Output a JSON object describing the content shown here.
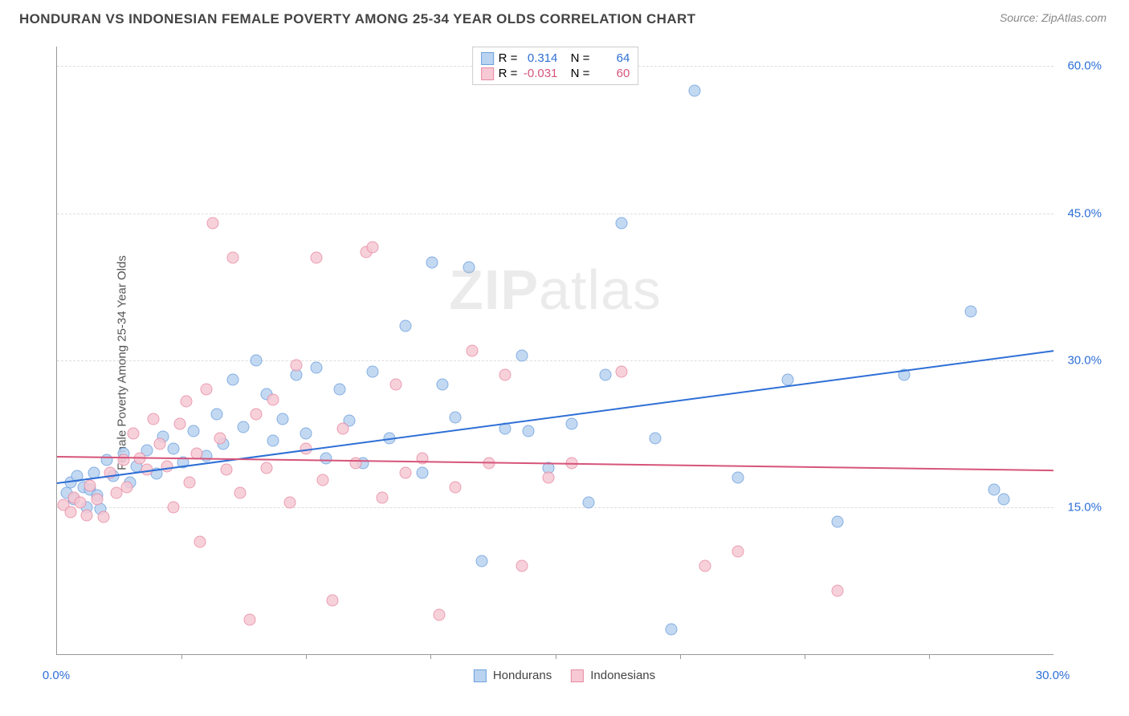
{
  "header": {
    "title": "HONDURAN VS INDONESIAN FEMALE POVERTY AMONG 25-34 YEAR OLDS CORRELATION CHART",
    "source": "Source: ZipAtlas.com"
  },
  "watermark": {
    "prefix": "ZIP",
    "suffix": "atlas"
  },
  "chart": {
    "type": "scatter",
    "ylabel": "Female Poverty Among 25-34 Year Olds",
    "xlim": [
      0,
      30
    ],
    "ylim": [
      0,
      62
    ],
    "x_axis_labels": [
      {
        "x": 0,
        "text": "0.0%",
        "color": "#2e6fd6"
      },
      {
        "x": 30,
        "text": "30.0%",
        "color": "#2e6fd6"
      }
    ],
    "x_ticks": [
      3.75,
      7.5,
      11.25,
      15,
      18.75,
      22.5,
      26.25
    ],
    "y_ticks": [
      {
        "y": 15,
        "label": "15.0%",
        "color": "#2e6fd6"
      },
      {
        "y": 30,
        "label": "30.0%",
        "color": "#2e6fd6"
      },
      {
        "y": 45,
        "label": "45.0%",
        "color": "#2e6fd6"
      },
      {
        "y": 60,
        "label": "60.0%",
        "color": "#2e6fd6"
      }
    ],
    "grid_color": "#dddddd",
    "background_color": "#ffffff",
    "marker_radius": 7.5,
    "series": [
      {
        "key": "hondurans",
        "label": "Hondurans",
        "fill": "#b9d3f0",
        "stroke": "#6fa1dd",
        "r_label": "R =",
        "r_value": "0.314",
        "n_label": "N =",
        "n_value": "64",
        "r_color": "#2e6fd6",
        "trend": {
          "x1": 0,
          "y1": 17.5,
          "x2": 30,
          "y2": 31.0,
          "color": "#2e6fd6",
          "width": 2
        },
        "points": [
          [
            0.3,
            16.5
          ],
          [
            0.4,
            17.5
          ],
          [
            0.5,
            15.8
          ],
          [
            0.6,
            18.2
          ],
          [
            0.8,
            17.0
          ],
          [
            0.9,
            15.0
          ],
          [
            1.0,
            16.8
          ],
          [
            1.1,
            18.5
          ],
          [
            1.2,
            16.2
          ],
          [
            1.3,
            14.8
          ],
          [
            1.5,
            19.8
          ],
          [
            1.7,
            18.2
          ],
          [
            2.0,
            20.5
          ],
          [
            2.2,
            17.5
          ],
          [
            2.4,
            19.2
          ],
          [
            2.7,
            20.8
          ],
          [
            3.0,
            18.4
          ],
          [
            3.2,
            22.2
          ],
          [
            3.5,
            21.0
          ],
          [
            3.8,
            19.6
          ],
          [
            4.1,
            22.8
          ],
          [
            4.5,
            20.2
          ],
          [
            4.8,
            24.5
          ],
          [
            5.0,
            21.5
          ],
          [
            5.3,
            28.0
          ],
          [
            5.6,
            23.2
          ],
          [
            6.0,
            30.0
          ],
          [
            6.3,
            26.5
          ],
          [
            6.5,
            21.8
          ],
          [
            6.8,
            24.0
          ],
          [
            7.2,
            28.5
          ],
          [
            7.5,
            22.5
          ],
          [
            7.8,
            29.2
          ],
          [
            8.1,
            20.0
          ],
          [
            8.5,
            27.0
          ],
          [
            8.8,
            23.8
          ],
          [
            9.2,
            19.5
          ],
          [
            9.5,
            28.8
          ],
          [
            10.0,
            22.0
          ],
          [
            10.5,
            33.5
          ],
          [
            11.0,
            18.5
          ],
          [
            11.3,
            40.0
          ],
          [
            11.6,
            27.5
          ],
          [
            12.0,
            24.2
          ],
          [
            12.4,
            39.5
          ],
          [
            12.8,
            9.5
          ],
          [
            13.5,
            23.0
          ],
          [
            14.0,
            30.5
          ],
          [
            14.2,
            22.8
          ],
          [
            14.8,
            19.0
          ],
          [
            15.5,
            23.5
          ],
          [
            16.0,
            15.5
          ],
          [
            16.5,
            28.5
          ],
          [
            17.0,
            44.0
          ],
          [
            18.0,
            22.0
          ],
          [
            18.5,
            2.5
          ],
          [
            19.2,
            57.5
          ],
          [
            20.5,
            18.0
          ],
          [
            22.0,
            28.0
          ],
          [
            23.5,
            13.5
          ],
          [
            25.5,
            28.5
          ],
          [
            27.5,
            35.0
          ],
          [
            28.2,
            16.8
          ],
          [
            28.5,
            15.8
          ]
        ]
      },
      {
        "key": "indonesians",
        "label": "Indonesians",
        "fill": "#f6c9d4",
        "stroke": "#e88ba4",
        "r_label": "R =",
        "r_value": "-0.031",
        "n_label": "N =",
        "n_value": "60",
        "r_color": "#d6547a",
        "trend": {
          "x1": 0,
          "y1": 20.2,
          "x2": 30,
          "y2": 18.8,
          "color": "#d6547a",
          "width": 2
        },
        "points": [
          [
            0.2,
            15.2
          ],
          [
            0.4,
            14.5
          ],
          [
            0.5,
            16.0
          ],
          [
            0.7,
            15.5
          ],
          [
            0.9,
            14.2
          ],
          [
            1.0,
            17.2
          ],
          [
            1.2,
            15.8
          ],
          [
            1.4,
            14.0
          ],
          [
            1.6,
            18.5
          ],
          [
            1.8,
            16.5
          ],
          [
            2.0,
            19.8
          ],
          [
            2.1,
            17.0
          ],
          [
            2.3,
            22.5
          ],
          [
            2.5,
            20.0
          ],
          [
            2.7,
            18.8
          ],
          [
            2.9,
            24.0
          ],
          [
            3.1,
            21.5
          ],
          [
            3.3,
            19.2
          ],
          [
            3.5,
            15.0
          ],
          [
            3.7,
            23.5
          ],
          [
            3.9,
            25.8
          ],
          [
            4.0,
            17.5
          ],
          [
            4.2,
            20.5
          ],
          [
            4.3,
            11.5
          ],
          [
            4.5,
            27.0
          ],
          [
            4.7,
            44.0
          ],
          [
            4.9,
            22.0
          ],
          [
            5.1,
            18.8
          ],
          [
            5.3,
            40.5
          ],
          [
            5.5,
            16.5
          ],
          [
            5.8,
            3.5
          ],
          [
            6.0,
            24.5
          ],
          [
            6.3,
            19.0
          ],
          [
            6.5,
            26.0
          ],
          [
            7.0,
            15.5
          ],
          [
            7.2,
            29.5
          ],
          [
            7.5,
            21.0
          ],
          [
            7.8,
            40.5
          ],
          [
            8.0,
            17.8
          ],
          [
            8.3,
            5.5
          ],
          [
            8.6,
            23.0
          ],
          [
            9.0,
            19.5
          ],
          [
            9.3,
            41.0
          ],
          [
            9.5,
            41.5
          ],
          [
            9.8,
            16.0
          ],
          [
            10.2,
            27.5
          ],
          [
            10.5,
            18.5
          ],
          [
            11.0,
            20.0
          ],
          [
            11.5,
            4.0
          ],
          [
            12.0,
            17.0
          ],
          [
            12.5,
            31.0
          ],
          [
            13.0,
            19.5
          ],
          [
            13.5,
            28.5
          ],
          [
            14.0,
            9.0
          ],
          [
            14.8,
            18.0
          ],
          [
            15.5,
            19.5
          ],
          [
            17.0,
            28.8
          ],
          [
            19.5,
            9.0
          ],
          [
            20.5,
            10.5
          ],
          [
            23.5,
            6.5
          ]
        ]
      }
    ],
    "legend_bottom": [
      {
        "label": "Hondurans",
        "fill": "#b9d3f0",
        "stroke": "#6fa1dd"
      },
      {
        "label": "Indonesians",
        "fill": "#f6c9d4",
        "stroke": "#e88ba4"
      }
    ]
  }
}
